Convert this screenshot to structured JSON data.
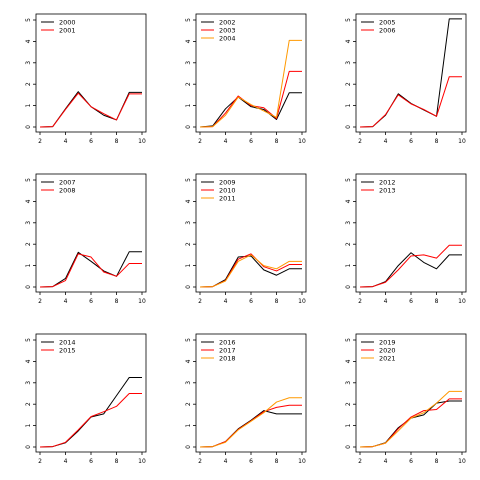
{
  "chart_data": [
    {
      "type": "line",
      "title": "",
      "xlabel": "",
      "ylabel": "",
      "xlim": [
        2,
        10
      ],
      "ylim": [
        0,
        5
      ],
      "x": [
        2,
        3,
        4,
        5,
        6,
        7,
        8,
        9,
        10
      ],
      "xticks": [
        "2",
        "4",
        "6",
        "8",
        "10"
      ],
      "yticks": [
        "0",
        "1",
        "2",
        "3",
        "4",
        "5"
      ],
      "legend_position": "top-left",
      "series": [
        {
          "name": "2000",
          "color": "#000000",
          "values": [
            0,
            0.02,
            0.85,
            1.65,
            0.95,
            0.55,
            0.33,
            1.62,
            1.62
          ]
        },
        {
          "name": "2001",
          "color": "#ff0000",
          "values": [
            0,
            0.02,
            0.82,
            1.58,
            0.95,
            0.62,
            0.33,
            1.55,
            1.55
          ]
        }
      ]
    },
    {
      "type": "line",
      "title": "",
      "xlabel": "",
      "ylabel": "",
      "xlim": [
        2,
        10
      ],
      "ylim": [
        0,
        5
      ],
      "x": [
        2,
        3,
        4,
        5,
        6,
        7,
        8,
        9,
        10
      ],
      "xticks": [
        "2",
        "4",
        "6",
        "8",
        "10"
      ],
      "yticks": [
        "0",
        "1",
        "2",
        "3",
        "4",
        "5"
      ],
      "legend_position": "top-left",
      "series": [
        {
          "name": "2002",
          "color": "#000000",
          "values": [
            0,
            0.05,
            0.85,
            1.4,
            0.95,
            0.82,
            0.35,
            1.6,
            1.6
          ]
        },
        {
          "name": "2003",
          "color": "#ff0000",
          "values": [
            0,
            0.02,
            0.65,
            1.45,
            1.0,
            0.9,
            0.4,
            2.6,
            2.6
          ]
        },
        {
          "name": "2004",
          "color": "#ff9900",
          "values": [
            0,
            0.02,
            0.55,
            1.4,
            1.05,
            0.75,
            0.45,
            4.05,
            4.05
          ]
        }
      ]
    },
    {
      "type": "line",
      "title": "",
      "xlabel": "",
      "ylabel": "",
      "xlim": [
        2,
        10
      ],
      "ylim": [
        0,
        5
      ],
      "x": [
        2,
        3,
        4,
        5,
        6,
        7,
        8,
        9,
        10
      ],
      "xticks": [
        "2",
        "4",
        "6",
        "8",
        "10"
      ],
      "yticks": [
        "0",
        "1",
        "2",
        "3",
        "4",
        "5"
      ],
      "legend_position": "top-left",
      "series": [
        {
          "name": "2005",
          "color": "#000000",
          "values": [
            0,
            0.02,
            0.55,
            1.55,
            1.1,
            0.8,
            0.5,
            5.05,
            5.05
          ]
        },
        {
          "name": "2006",
          "color": "#ff0000",
          "values": [
            0,
            0.02,
            0.58,
            1.5,
            1.08,
            0.82,
            0.5,
            2.35,
            2.35
          ]
        }
      ]
    },
    {
      "type": "line",
      "title": "",
      "xlabel": "",
      "ylabel": "",
      "xlim": [
        2,
        10
      ],
      "ylim": [
        0,
        5
      ],
      "x": [
        2,
        3,
        4,
        5,
        6,
        7,
        8,
        9,
        10
      ],
      "xticks": [
        "2",
        "4",
        "6",
        "8",
        "10"
      ],
      "yticks": [
        "0",
        "1",
        "2",
        "3",
        "4",
        "5"
      ],
      "legend_position": "top-left",
      "series": [
        {
          "name": "2007",
          "color": "#000000",
          "values": [
            0,
            0.02,
            0.4,
            1.62,
            1.2,
            0.75,
            0.5,
            1.65,
            1.65
          ]
        },
        {
          "name": "2008",
          "color": "#ff0000",
          "values": [
            0,
            0.02,
            0.3,
            1.55,
            1.4,
            0.7,
            0.5,
            1.1,
            1.1
          ]
        }
      ]
    },
    {
      "type": "line",
      "title": "",
      "xlabel": "",
      "ylabel": "",
      "xlim": [
        2,
        10
      ],
      "ylim": [
        0,
        5
      ],
      "x": [
        2,
        3,
        4,
        5,
        6,
        7,
        8,
        9,
        10
      ],
      "xticks": [
        "2",
        "4",
        "6",
        "8",
        "10"
      ],
      "yticks": [
        "0",
        "1",
        "2",
        "3",
        "4",
        "5"
      ],
      "legend_position": "top-left",
      "series": [
        {
          "name": "2009",
          "color": "#000000",
          "values": [
            0,
            0.02,
            0.35,
            1.4,
            1.45,
            0.8,
            0.55,
            0.85,
            0.85
          ]
        },
        {
          "name": "2010",
          "color": "#ff0000",
          "values": [
            0,
            0.02,
            0.3,
            1.3,
            1.55,
            0.95,
            0.75,
            1.05,
            1.05
          ]
        },
        {
          "name": "2011",
          "color": "#ff9900",
          "values": [
            0,
            0.02,
            0.28,
            1.2,
            1.5,
            1.0,
            0.85,
            1.2,
            1.2
          ]
        }
      ]
    },
    {
      "type": "line",
      "title": "",
      "xlabel": "",
      "ylabel": "",
      "xlim": [
        2,
        10
      ],
      "ylim": [
        0,
        5
      ],
      "x": [
        2,
        3,
        4,
        5,
        6,
        7,
        8,
        9,
        10
      ],
      "xticks": [
        "2",
        "4",
        "6",
        "8",
        "10"
      ],
      "yticks": [
        "0",
        "1",
        "2",
        "3",
        "4",
        "5"
      ],
      "legend_position": "top-left",
      "series": [
        {
          "name": "2012",
          "color": "#000000",
          "values": [
            0,
            0.02,
            0.25,
            1.0,
            1.6,
            1.15,
            0.85,
            1.5,
            1.5
          ]
        },
        {
          "name": "2013",
          "color": "#ff0000",
          "values": [
            0,
            0.02,
            0.22,
            0.8,
            1.45,
            1.5,
            1.35,
            1.95,
            1.95
          ]
        }
      ]
    },
    {
      "type": "line",
      "title": "",
      "xlabel": "",
      "ylabel": "",
      "xlim": [
        2,
        10
      ],
      "ylim": [
        0,
        5
      ],
      "x": [
        2,
        3,
        4,
        5,
        6,
        7,
        8,
        9,
        10
      ],
      "xticks": [
        "2",
        "4",
        "6",
        "8",
        "10"
      ],
      "yticks": [
        "0",
        "1",
        "2",
        "3",
        "4",
        "5"
      ],
      "legend_position": "top-left",
      "series": [
        {
          "name": "2014",
          "color": "#000000",
          "values": [
            0,
            0.02,
            0.2,
            0.75,
            1.4,
            1.55,
            2.4,
            3.25,
            3.25
          ]
        },
        {
          "name": "2015",
          "color": "#ff0000",
          "values": [
            0,
            0.02,
            0.22,
            0.8,
            1.42,
            1.65,
            1.9,
            2.5,
            2.5
          ]
        }
      ]
    },
    {
      "type": "line",
      "title": "",
      "xlabel": "",
      "ylabel": "",
      "xlim": [
        2,
        10
      ],
      "ylim": [
        0,
        5
      ],
      "x": [
        2,
        3,
        4,
        5,
        6,
        7,
        8,
        9,
        10
      ],
      "xticks": [
        "2",
        "4",
        "6",
        "8",
        "10"
      ],
      "yticks": [
        "0",
        "1",
        "2",
        "3",
        "4",
        "5"
      ],
      "legend_position": "top-left",
      "series": [
        {
          "name": "2016",
          "color": "#000000",
          "values": [
            0,
            0.02,
            0.25,
            0.85,
            1.25,
            1.7,
            1.55,
            1.55,
            1.55
          ]
        },
        {
          "name": "2017",
          "color": "#ff0000",
          "values": [
            0,
            0.02,
            0.25,
            0.82,
            1.22,
            1.65,
            1.85,
            1.95,
            1.95
          ]
        },
        {
          "name": "2018",
          "color": "#ff9900",
          "values": [
            0,
            0.02,
            0.22,
            0.8,
            1.2,
            1.6,
            2.1,
            2.3,
            2.3
          ]
        }
      ]
    },
    {
      "type": "line",
      "title": "",
      "xlabel": "",
      "ylabel": "",
      "xlim": [
        2,
        10
      ],
      "ylim": [
        0,
        5
      ],
      "x": [
        2,
        3,
        4,
        5,
        6,
        7,
        8,
        9,
        10
      ],
      "xticks": [
        "2",
        "4",
        "6",
        "8",
        "10"
      ],
      "yticks": [
        "0",
        "1",
        "2",
        "3",
        "4",
        "5"
      ],
      "legend_position": "top-left",
      "series": [
        {
          "name": "2019",
          "color": "#000000",
          "values": [
            0,
            0.02,
            0.2,
            0.9,
            1.35,
            1.5,
            2.05,
            2.15,
            2.15
          ]
        },
        {
          "name": "2020",
          "color": "#ff0000",
          "values": [
            0,
            0.02,
            0.18,
            0.85,
            1.4,
            1.7,
            1.75,
            2.25,
            2.25
          ]
        },
        {
          "name": "2021",
          "color": "#ff9900",
          "values": [
            0,
            0.02,
            0.18,
            0.75,
            1.35,
            1.6,
            2.05,
            2.6,
            2.6
          ]
        }
      ]
    }
  ]
}
